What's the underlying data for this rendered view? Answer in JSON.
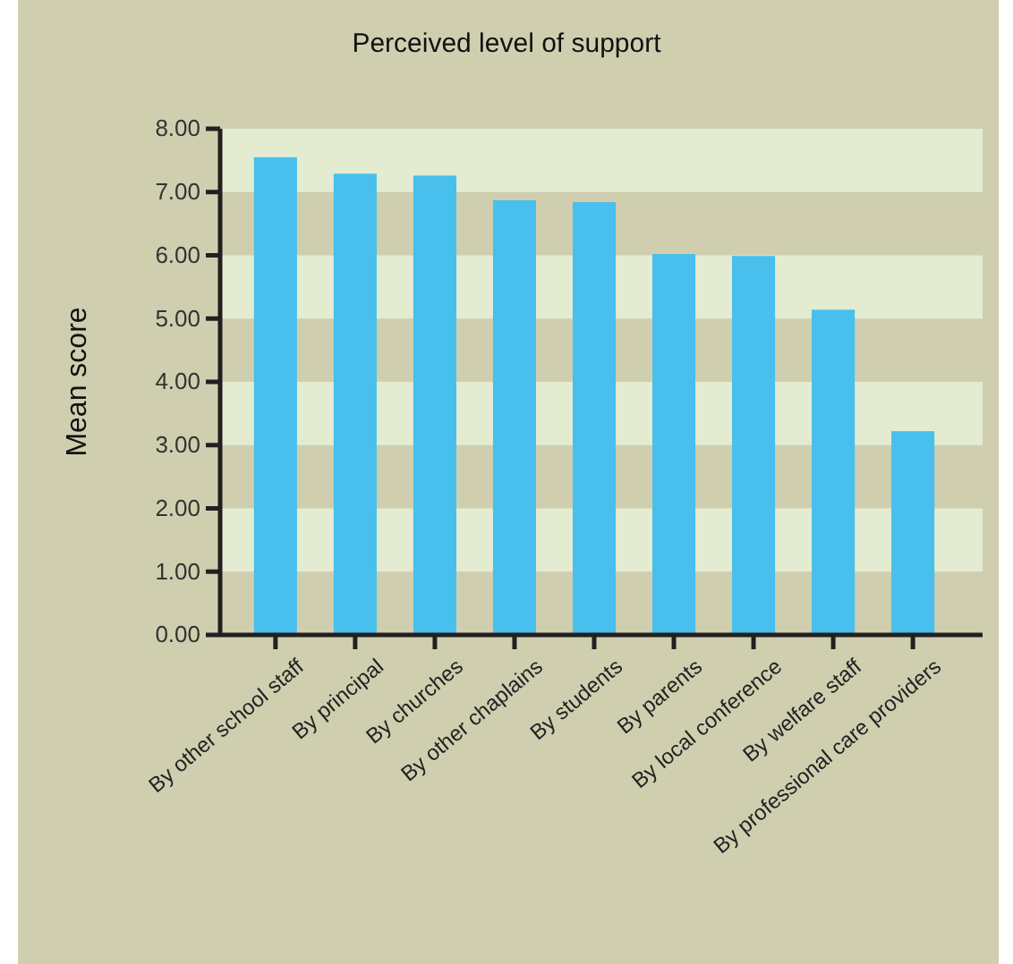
{
  "chart_data": {
    "type": "bar",
    "title": "Perceived level of support",
    "ylabel": "Mean score",
    "categories": [
      "By other school staff",
      "By principal",
      "By churches",
      "By other chaplains",
      "By students",
      "By parents",
      "By local conference",
      "By welfare staff",
      "By professional care providers"
    ],
    "values": [
      7.55,
      7.29,
      7.26,
      6.87,
      6.84,
      6.02,
      5.99,
      5.14,
      3.22
    ],
    "color": "#48bfec",
    "ylim": [
      0,
      8
    ],
    "yticks": [
      {
        "value": 0,
        "label": "0.00"
      },
      {
        "value": 1,
        "label": "1.00"
      },
      {
        "value": 2,
        "label": "2.00"
      },
      {
        "value": 3,
        "label": "3.00"
      },
      {
        "value": 4,
        "label": "4.00"
      },
      {
        "value": 5,
        "label": "5.00"
      },
      {
        "value": 6,
        "label": "6.00"
      },
      {
        "value": 7,
        "label": "7.00"
      },
      {
        "value": 8,
        "label": "8.00"
      }
    ],
    "bands": [
      {
        "axis": "y",
        "from": 7,
        "to": 8,
        "color": "#e3ecd1"
      },
      {
        "axis": "y",
        "from": 5,
        "to": 6,
        "color": "#e3ecd1"
      },
      {
        "axis": "y",
        "from": 3,
        "to": 4,
        "color": "#e3ecd1"
      },
      {
        "axis": "y",
        "from": 1,
        "to": 2,
        "color": "#e3ecd1"
      }
    ]
  }
}
